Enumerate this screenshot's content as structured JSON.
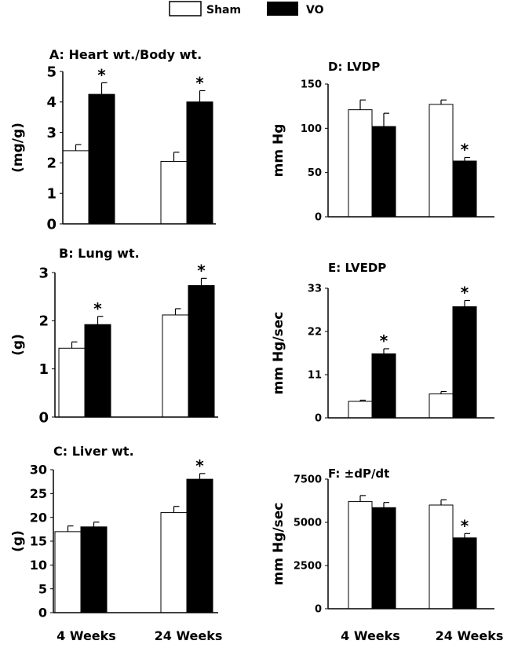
{
  "legend": {
    "position": "top-center",
    "items": [
      {
        "name": "Sham",
        "color": "#ffffff"
      },
      {
        "name": "VO",
        "color": "#000000"
      }
    ]
  },
  "x_labels": [
    "4 Weeks",
    "24 Weeks"
  ],
  "chart_data": [
    {
      "type": "bar",
      "title": "A: Heart wt./Body wt.",
      "ylabel": "(mg/g)",
      "ylim": [
        0,
        5
      ],
      "yticks": [
        0,
        1,
        2,
        3,
        4,
        5
      ],
      "categories": [
        "4 Weeks",
        "24 Weeks"
      ],
      "series": [
        {
          "name": "Sham",
          "values": [
            2.4,
            2.05
          ],
          "errors": [
            0.2,
            0.3
          ]
        },
        {
          "name": "VO",
          "values": [
            4.25,
            4.0
          ],
          "errors": [
            0.38,
            0.37
          ]
        }
      ],
      "significance": [
        [
          false,
          true
        ],
        [
          false,
          true
        ]
      ]
    },
    {
      "type": "bar",
      "title": "B: Lung wt.",
      "ylabel": "(g)",
      "ylim": [
        0,
        3
      ],
      "yticks": [
        0,
        1,
        2,
        3
      ],
      "categories": [
        "4 Weeks",
        "24 Weeks"
      ],
      "series": [
        {
          "name": "Sham",
          "values": [
            1.43,
            2.12
          ],
          "errors": [
            0.13,
            0.13
          ]
        },
        {
          "name": "VO",
          "values": [
            1.92,
            2.73
          ],
          "errors": [
            0.17,
            0.15
          ]
        }
      ],
      "significance": [
        [
          false,
          true
        ],
        [
          false,
          true
        ]
      ]
    },
    {
      "type": "bar",
      "title": "C: Liver wt.",
      "ylabel": "(g)",
      "ylim": [
        0,
        30
      ],
      "yticks": [
        0,
        5,
        10,
        15,
        20,
        25,
        30
      ],
      "categories": [
        "4 Weeks",
        "24 Weeks"
      ],
      "series": [
        {
          "name": "Sham",
          "values": [
            17,
            21
          ],
          "errors": [
            1.2,
            1.3
          ]
        },
        {
          "name": "VO",
          "values": [
            18,
            28
          ],
          "errors": [
            1.0,
            1.2
          ]
        }
      ],
      "significance": [
        [
          false,
          false
        ],
        [
          false,
          true
        ]
      ]
    },
    {
      "type": "bar",
      "title": "D: LVDP",
      "ylabel": "mm Hg",
      "ylim": [
        0,
        150
      ],
      "yticks": [
        0,
        50,
        100,
        150
      ],
      "categories": [
        "4 Weeks",
        "24 Weeks"
      ],
      "series": [
        {
          "name": "Sham",
          "values": [
            121,
            127
          ],
          "errors": [
            11,
            5
          ]
        },
        {
          "name": "VO",
          "values": [
            102,
            63
          ],
          "errors": [
            15,
            4
          ]
        }
      ],
      "significance": [
        [
          false,
          false
        ],
        [
          false,
          true
        ]
      ]
    },
    {
      "type": "bar",
      "title": "E: LVEDP",
      "ylabel": "mm Hg/sec",
      "ylim": [
        0,
        33
      ],
      "yticks": [
        0,
        11,
        22,
        33
      ],
      "categories": [
        "4 Weeks",
        "24 Weeks"
      ],
      "series": [
        {
          "name": "Sham",
          "values": [
            4.2,
            6.1
          ],
          "errors": [
            0.3,
            0.6
          ]
        },
        {
          "name": "VO",
          "values": [
            16.3,
            28.3
          ],
          "errors": [
            1.3,
            1.6
          ]
        }
      ],
      "significance": [
        [
          false,
          true
        ],
        [
          false,
          true
        ]
      ]
    },
    {
      "type": "bar",
      "title": "F: ±dP/dt",
      "ylabel": "mm Hg/sec",
      "ylim": [
        0,
        7500
      ],
      "yticks": [
        0,
        2500,
        5000,
        7500
      ],
      "categories": [
        "4 Weeks",
        "24 Weeks"
      ],
      "series": [
        {
          "name": "Sham",
          "values": [
            6200,
            6000
          ],
          "errors": [
            350,
            300
          ]
        },
        {
          "name": "VO",
          "values": [
            5850,
            4100
          ],
          "errors": [
            300,
            250
          ]
        }
      ],
      "significance": [
        [
          false,
          false
        ],
        [
          false,
          true
        ]
      ]
    }
  ]
}
